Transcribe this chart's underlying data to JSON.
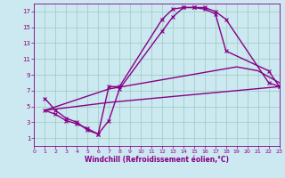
{
  "background_color": "#cce8f0",
  "grid_color": "#99ccbb",
  "line_color": "#880088",
  "xlim": [
    0,
    23
  ],
  "ylim": [
    0,
    18
  ],
  "xticks": [
    0,
    1,
    2,
    3,
    4,
    5,
    6,
    7,
    8,
    9,
    10,
    11,
    12,
    13,
    14,
    15,
    16,
    17,
    18,
    19,
    20,
    21,
    22,
    23
  ],
  "yticks": [
    1,
    3,
    5,
    7,
    9,
    11,
    13,
    15,
    17
  ],
  "xlabel": "Windchill (Refroidissement éolien,°C)",
  "line1_x": [
    1,
    2,
    3,
    4,
    5,
    6,
    7,
    8,
    12,
    13,
    14,
    15,
    16,
    17,
    18,
    22,
    23
  ],
  "line1_y": [
    6,
    4.5,
    3.5,
    3,
    2,
    1.5,
    7.5,
    7.5,
    16,
    17.3,
    17.5,
    17.5,
    17.5,
    17,
    16,
    8,
    7.5
  ],
  "line2_x": [
    1,
    2,
    3,
    4,
    5,
    6,
    7,
    8,
    12,
    13,
    14,
    15,
    16,
    17,
    18,
    22,
    23
  ],
  "line2_y": [
    4.5,
    4,
    3.2,
    2.8,
    2.2,
    1.5,
    3.2,
    7.2,
    14.5,
    16.3,
    17.5,
    17.5,
    17.3,
    16.7,
    12,
    9.5,
    7.5
  ],
  "line3_x": [
    1,
    7,
    23
  ],
  "line3_y": [
    4.5,
    5.5,
    7.5
  ],
  "line4_x": [
    1,
    7,
    19,
    21,
    23
  ],
  "line4_y": [
    4.5,
    7.2,
    10,
    9.5,
    8
  ],
  "marker1_x": [
    1,
    2,
    3,
    4,
    5,
    6,
    7,
    8,
    12,
    13,
    14,
    15,
    16,
    17,
    18,
    22,
    23
  ],
  "marker1_y": [
    6,
    4.5,
    3.5,
    3,
    2,
    1.5,
    7.5,
    7.5,
    16,
    17.3,
    17.5,
    17.5,
    17.5,
    17,
    16,
    8,
    7.5
  ],
  "marker2_x": [
    1,
    2,
    3,
    4,
    5,
    6,
    7,
    8,
    12,
    13,
    14,
    15,
    16,
    17,
    18,
    22,
    23
  ],
  "marker2_y": [
    4.5,
    4,
    3.2,
    2.8,
    2.2,
    1.5,
    3.2,
    7.2,
    14.5,
    16.3,
    17.5,
    17.5,
    17.3,
    16.7,
    12,
    9.5,
    7.5
  ],
  "marker_size": 3,
  "line_width": 1.0
}
